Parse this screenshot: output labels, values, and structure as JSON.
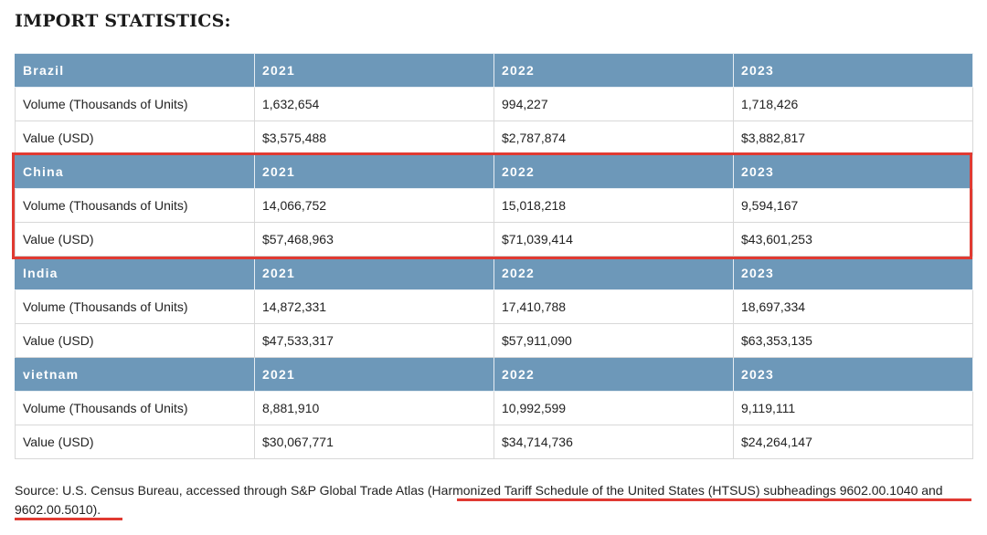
{
  "title": "IMPORT STATISTICS:",
  "sections": [
    {
      "country": "Brazil",
      "years": [
        "2021",
        "2022",
        "2023"
      ],
      "rows": [
        {
          "label": "Volume (Thousands of Units)",
          "values": [
            "1,632,654",
            "994,227",
            "1,718,426"
          ]
        },
        {
          "label": "Value (USD)",
          "values": [
            "$3,575,488",
            "$2,787,874",
            "$3,882,817"
          ]
        }
      ]
    },
    {
      "country": "China",
      "years": [
        "2021",
        "2022",
        "2023"
      ],
      "rows": [
        {
          "label": "Volume (Thousands of Units)",
          "values": [
            "14,066,752",
            "15,018,218",
            "9,594,167"
          ]
        },
        {
          "label": "Value (USD)",
          "values": [
            "$57,468,963",
            "$71,039,414",
            "$43,601,253"
          ]
        }
      ]
    },
    {
      "country": "India",
      "years": [
        "2021",
        "2022",
        "2023"
      ],
      "rows": [
        {
          "label": "Volume (Thousands of Units)",
          "values": [
            "14,872,331",
            "17,410,788",
            "18,697,334"
          ]
        },
        {
          "label": "Value (USD)",
          "values": [
            "$47,533,317",
            "$57,911,090",
            "$63,353,135"
          ]
        }
      ]
    },
    {
      "country": "vietnam",
      "years": [
        "2021",
        "2022",
        "2023"
      ],
      "rows": [
        {
          "label": "Volume (Thousands of Units)",
          "values": [
            "8,881,910",
            "10,992,599",
            "9,119,111"
          ]
        },
        {
          "label": "Value (USD)",
          "values": [
            "$30,067,771",
            "$34,714,736",
            "$24,264,147"
          ]
        }
      ]
    }
  ],
  "source": {
    "prefix": "Source:  U.S. Census Bureau, accessed through S&P Global Trade Atlas (",
    "link": "Harmonized Tariff Schedule of the United States (HTSUS) subheadings 9602.00.1040 and 9602.00.5010",
    "suffix": ")."
  },
  "colors": {
    "header_bg": "#6d98b9",
    "highlight": "#e03a32"
  }
}
